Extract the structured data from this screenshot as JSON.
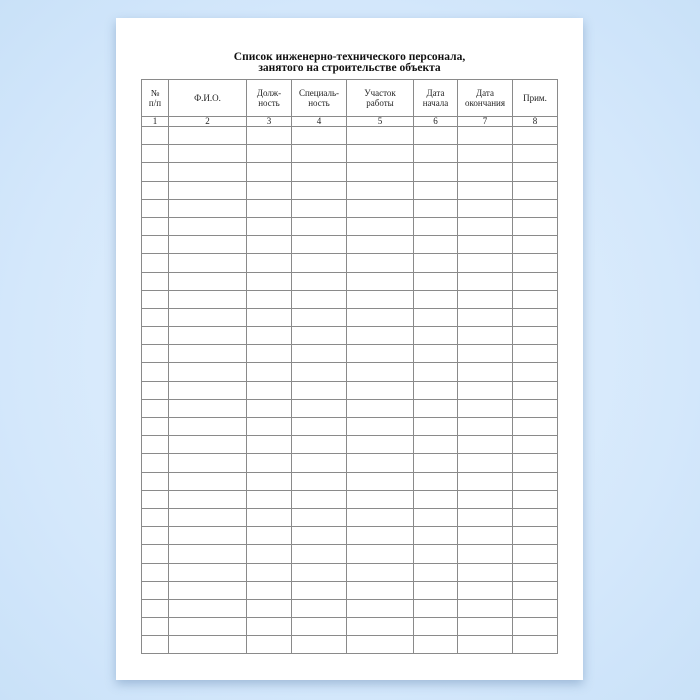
{
  "document": {
    "title_line1": "Список инженерно-технического персонала,",
    "title_line2": "занятого на строительстве объекта",
    "columns": [
      {
        "header": [
          "№",
          "п/п"
        ],
        "number": "1"
      },
      {
        "header": [
          "Ф.И.О."
        ],
        "number": "2"
      },
      {
        "header": [
          "Долж-",
          "ность"
        ],
        "number": "3"
      },
      {
        "header": [
          "Специаль-",
          "ность"
        ],
        "number": "4"
      },
      {
        "header": [
          "Участок",
          "работы"
        ],
        "number": "5"
      },
      {
        "header": [
          "Дата",
          "начала"
        ],
        "number": "6"
      },
      {
        "header": [
          "Дата",
          "окончания"
        ],
        "number": "7"
      },
      {
        "header": [
          "Прим."
        ],
        "number": "8"
      }
    ],
    "empty_rows": 29
  }
}
